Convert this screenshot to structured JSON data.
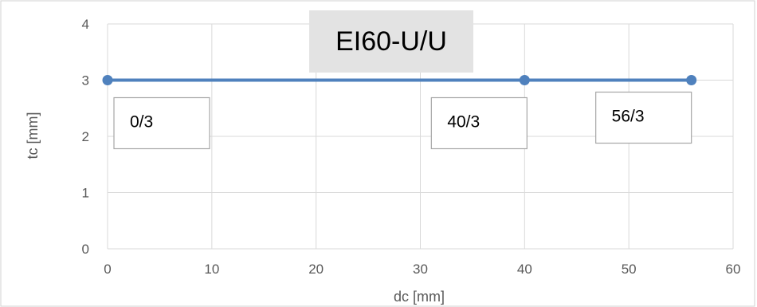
{
  "chart_data": {
    "type": "line",
    "title": "EI60-U/U",
    "xlabel": "dc [mm]",
    "ylabel": "tc [mm]",
    "xlim": [
      0,
      60
    ],
    "ylim": [
      0,
      4
    ],
    "x_ticks": [
      0,
      10,
      20,
      30,
      40,
      50,
      60
    ],
    "y_ticks": [
      0,
      1,
      2,
      3,
      4
    ],
    "grid": true,
    "legend": "none",
    "series": [
      {
        "x": [
          0,
          40,
          56
        ],
        "y": [
          3,
          3,
          3
        ],
        "color": "#4f81bd"
      }
    ],
    "annotations": [
      {
        "text": "0/3",
        "x": 0,
        "y": 3
      },
      {
        "text": "40/3",
        "x": 40,
        "y": 3
      },
      {
        "text": "56/3",
        "x": 56,
        "y": 3
      }
    ]
  }
}
